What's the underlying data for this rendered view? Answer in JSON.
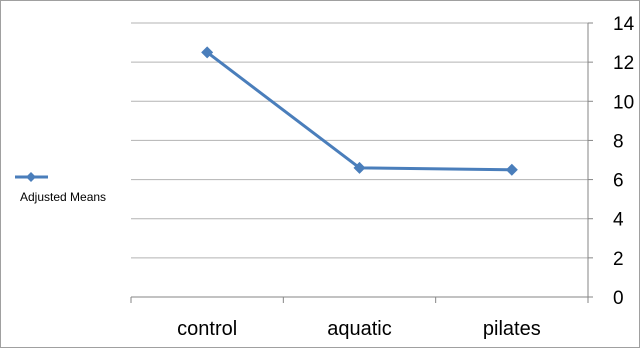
{
  "chart_data": {
    "type": "line",
    "categories": [
      "control",
      "aquatic",
      "pilates"
    ],
    "series": [
      {
        "name": "Adjusted Means",
        "values": [
          12.5,
          6.6,
          6.5
        ],
        "color": "#4a7ebb"
      }
    ],
    "yticks": [
      0,
      2,
      4,
      6,
      8,
      10,
      12,
      14
    ],
    "ylim": [
      0,
      14
    ],
    "y_axis_side": "right",
    "grid": true,
    "legend_position": "left",
    "marker": "diamond"
  }
}
